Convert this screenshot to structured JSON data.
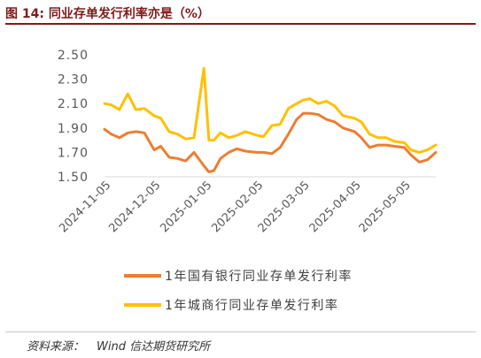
{
  "figure": {
    "title": "图 14:  同业存单发行利率亦是（%）",
    "source_label": "资料来源：",
    "source_text": "Wind  信达期货研究所"
  },
  "colors": {
    "title": "#7f1a1a",
    "series_state_bank": "#ed7d31",
    "series_city_bank": "#ffc000",
    "axis": "#d9d9d9",
    "text": "#595959"
  },
  "chart_data": {
    "type": "line",
    "title": "",
    "xlabel": "",
    "ylabel": "",
    "ylim": [
      1.5,
      2.5
    ],
    "yticks": [
      "2.50",
      "2.30",
      "2.10",
      "1.90",
      "1.70",
      "1.50"
    ],
    "xticks": [
      "2024-11-05",
      "2024-12-05",
      "2025-01-05",
      "2025-02-05",
      "2025-03-05",
      "2025-04-05",
      "2025-05-05"
    ],
    "x": [
      "2024-11-01",
      "2024-11-05",
      "2024-11-10",
      "2024-11-15",
      "2024-11-20",
      "2024-11-25",
      "2024-12-01",
      "2024-12-05",
      "2024-12-10",
      "2024-12-15",
      "2024-12-20",
      "2024-12-25",
      "2024-12-31",
      "2025-01-03",
      "2025-01-06",
      "2025-01-10",
      "2025-01-15",
      "2025-01-20",
      "2025-01-25",
      "2025-02-01",
      "2025-02-05",
      "2025-02-10",
      "2025-02-15",
      "2025-02-20",
      "2025-02-25",
      "2025-03-01",
      "2025-03-05",
      "2025-03-10",
      "2025-03-15",
      "2025-03-20",
      "2025-03-25",
      "2025-04-01",
      "2025-04-05",
      "2025-04-10",
      "2025-04-15",
      "2025-04-20",
      "2025-04-25",
      "2025-05-01",
      "2025-05-05",
      "2025-05-10",
      "2025-05-15",
      "2025-05-20"
    ],
    "legend_position": "bottom",
    "series": [
      {
        "name": "1年国有银行同业存单发行利率",
        "values": [
          1.89,
          1.85,
          1.82,
          1.86,
          1.87,
          1.86,
          1.72,
          1.75,
          1.66,
          1.65,
          1.63,
          1.7,
          1.59,
          1.54,
          1.55,
          1.65,
          1.7,
          1.73,
          1.71,
          1.7,
          1.7,
          1.69,
          1.74,
          1.85,
          1.97,
          2.02,
          2.02,
          2.01,
          1.97,
          1.95,
          1.9,
          1.87,
          1.82,
          1.74,
          1.76,
          1.76,
          1.75,
          1.74,
          1.68,
          1.62,
          1.64,
          1.7
        ]
      },
      {
        "name": "1年城商行同业存单发行利率",
        "values": [
          2.1,
          2.09,
          2.05,
          2.18,
          2.05,
          2.06,
          2.0,
          1.98,
          1.87,
          1.85,
          1.81,
          1.82,
          2.39,
          1.8,
          1.8,
          1.86,
          1.82,
          1.84,
          1.87,
          1.84,
          1.83,
          1.92,
          1.93,
          2.06,
          2.1,
          2.13,
          2.14,
          2.1,
          2.12,
          2.08,
          2.0,
          1.98,
          1.95,
          1.85,
          1.82,
          1.82,
          1.79,
          1.78,
          1.72,
          1.7,
          1.72,
          1.76
        ]
      }
    ]
  }
}
